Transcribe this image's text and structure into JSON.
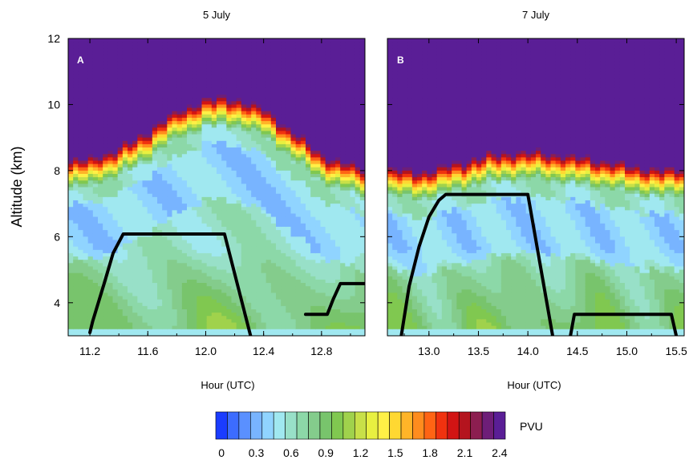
{
  "chart_data": [
    {
      "type": "heatmap",
      "title": "5 July",
      "panel_label": "A",
      "xlabel": "Hour (UTC)",
      "ylabel": "Altitude (km)",
      "xlim": [
        11.05,
        13.1
      ],
      "ylim": [
        3.0,
        12.0
      ],
      "xticks": [
        "11.2",
        "11.6",
        "12.0",
        "12.4",
        "12.8"
      ],
      "yticks": [
        "4",
        "6",
        "8",
        "10",
        "12"
      ],
      "field": "potential vorticity (PVU)",
      "tropopause_height_km": {
        "x": [
          11.05,
          11.2,
          11.4,
          11.6,
          11.8,
          12.0,
          12.2,
          12.4,
          12.6,
          12.8,
          13.0,
          13.1
        ],
        "y": [
          8.4,
          8.5,
          8.8,
          9.3,
          9.9,
          10.3,
          10.3,
          10.0,
          9.3,
          8.6,
          8.3,
          8.2
        ]
      },
      "flight_track": [
        {
          "x": [
            11.2,
            11.22,
            11.3,
            11.36,
            11.43,
            12.0,
            12.13,
            12.31
          ],
          "y": [
            3.1,
            3.45,
            4.6,
            5.5,
            6.08,
            6.08,
            6.08,
            3.0
          ]
        },
        {
          "x": [
            12.69,
            12.84,
            12.88,
            12.93,
            13.1
          ],
          "y": [
            3.65,
            3.65,
            4.1,
            4.58,
            4.58
          ]
        }
      ]
    },
    {
      "type": "heatmap",
      "title": "7 July",
      "panel_label": "B",
      "xlabel": "Hour (UTC)",
      "ylabel": "",
      "xlim": [
        12.58,
        15.58
      ],
      "ylim": [
        3.0,
        12.0
      ],
      "xticks": [
        "13.0",
        "13.5",
        "14.0",
        "14.5",
        "15.0",
        "15.5"
      ],
      "yticks": [
        "4",
        "6",
        "8",
        "10",
        "12"
      ],
      "field": "potential vorticity (PVU)",
      "tropopause_height_km": {
        "x": [
          12.58,
          12.8,
          13.0,
          13.3,
          13.6,
          13.9,
          14.2,
          14.5,
          14.8,
          15.1,
          15.4,
          15.58
        ],
        "y": [
          8.2,
          8.1,
          8.1,
          8.35,
          8.6,
          8.7,
          8.65,
          8.55,
          8.4,
          8.25,
          8.15,
          8.2
        ]
      },
      "flight_track": [
        {
          "x": [
            12.72,
            12.8,
            12.9,
            13.0,
            13.1,
            13.17,
            14.0,
            14.25
          ],
          "y": [
            3.0,
            4.5,
            5.7,
            6.6,
            7.1,
            7.28,
            7.28,
            3.0
          ]
        },
        {
          "x": [
            14.43,
            14.47,
            15.45,
            15.5
          ],
          "y": [
            3.0,
            3.65,
            3.65,
            3.0
          ]
        }
      ]
    }
  ],
  "colorbar": {
    "unit_label": "PVU",
    "tick_labels": [
      "0",
      "0.3",
      "0.6",
      "0.9",
      "1.2",
      "1.5",
      "1.8",
      "2.1",
      "2.4"
    ],
    "min": 0,
    "step": 0.1,
    "colors": [
      "#1a3cff",
      "#3c6cff",
      "#5a90ff",
      "#78b4ff",
      "#90d4ff",
      "#a0e8f0",
      "#98e0c8",
      "#8cd8a8",
      "#84cc8c",
      "#78c46c",
      "#80c850",
      "#a0d24c",
      "#c8e048",
      "#e8f040",
      "#fff046",
      "#ffd832",
      "#ffb428",
      "#ff8c1e",
      "#ff6414",
      "#f0320f",
      "#d21414",
      "#b4141e",
      "#8c1e50",
      "#6e1e78",
      "#5a1e96"
    ]
  }
}
